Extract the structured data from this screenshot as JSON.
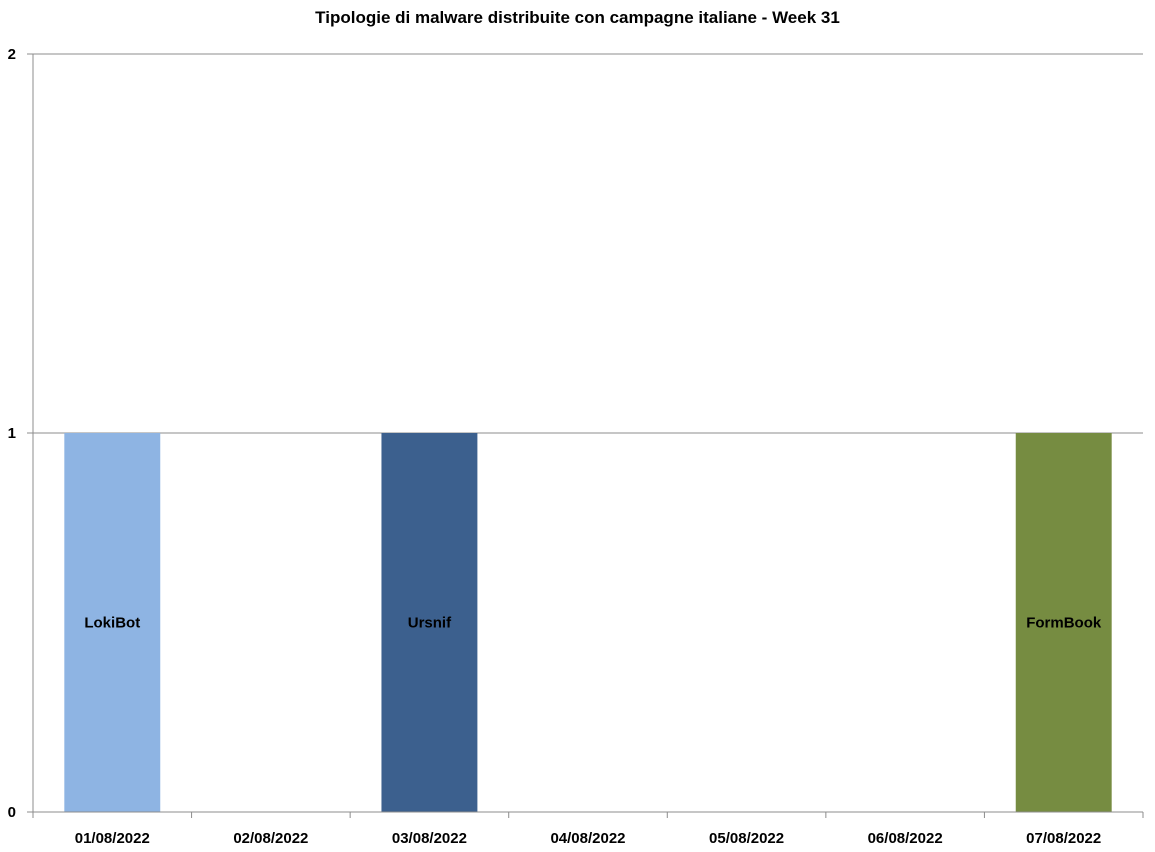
{
  "chart_data": {
    "type": "bar",
    "title": "Tipologie  di malware distribuite con campagne italiane - Week 31",
    "xlabel": "",
    "ylabel": "",
    "ylim": [
      0,
      2
    ],
    "yticks": [
      0,
      1,
      2
    ],
    "grid": true,
    "legend": "none",
    "categories": [
      "01/08/2022",
      "02/08/2022",
      "03/08/2022",
      "04/08/2022",
      "05/08/2022",
      "06/08/2022",
      "07/08/2022"
    ],
    "series": [
      {
        "name": "LokiBot",
        "color": "#8eb4e3",
        "values": [
          1,
          0,
          0,
          0,
          0,
          0,
          0
        ]
      },
      {
        "name": "Ursnif",
        "color": "#3c608e",
        "values": [
          0,
          0,
          1,
          0,
          0,
          0,
          0
        ]
      },
      {
        "name": "FormBook",
        "color": "#768c41",
        "values": [
          0,
          0,
          0,
          0,
          0,
          0,
          1
        ]
      }
    ]
  }
}
